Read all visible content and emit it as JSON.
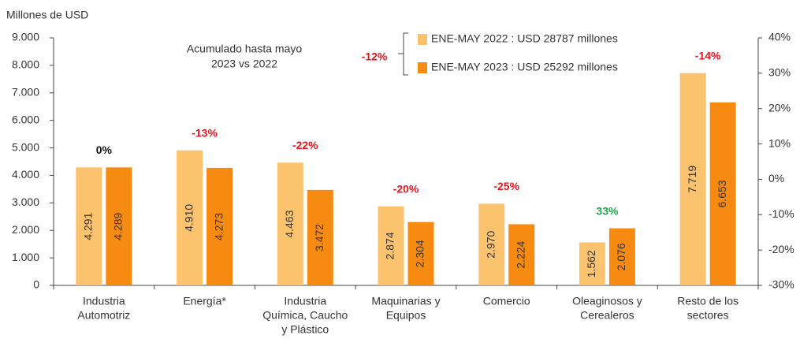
{
  "chart_data": {
    "type": "bar",
    "y_label": "Millones de USD",
    "annotation": [
      "Acumulado hasta mayo",
      "2023 vs 2022"
    ],
    "categories": [
      [
        "Industria",
        "Automotriz"
      ],
      [
        "Energía*"
      ],
      [
        "Industria",
        "Química, Caucho",
        "y Plástico"
      ],
      [
        "Maquinarias y",
        "Equipos"
      ],
      [
        "Comercio"
      ],
      [
        "Oleaginosos y",
        "Cerealeros"
      ],
      [
        "Resto de los",
        "sectores"
      ]
    ],
    "series": [
      {
        "name": "ENE-MAY 2022 : USD 28787 millones",
        "color": "#fcc36f",
        "values": [
          4291,
          4910,
          4463,
          2874,
          2970,
          1562,
          7719
        ],
        "value_labels": [
          "4.291",
          "4.910",
          "4.463",
          "2.874",
          "2.970",
          "1.562",
          "7.719"
        ]
      },
      {
        "name": "ENE-MAY 2023 : USD 25292 millones",
        "color": "#f78a10",
        "values": [
          4289,
          4273,
          3472,
          2304,
          2224,
          2076,
          6653
        ],
        "value_labels": [
          "4.289",
          "4.273",
          "3.472",
          "2.304",
          "2.224",
          "2.076",
          "6.653"
        ]
      }
    ],
    "changes": [
      {
        "value": 0,
        "label": "0%"
      },
      {
        "value": -13,
        "label": "-13%"
      },
      {
        "value": -22,
        "label": "-22%"
      },
      {
        "value": -20,
        "label": "-20%"
      },
      {
        "value": -25,
        "label": "-25%"
      },
      {
        "value": 33,
        "label": "33%"
      },
      {
        "value": -14,
        "label": "-14%"
      }
    ],
    "total_change": {
      "value": -12,
      "label": "-12%"
    },
    "negative_color": "#e8141e",
    "positive_color": "#1aa84a",
    "neutral_color": "#111111",
    "ylim": [
      0,
      9000
    ],
    "yticks": [
      0,
      {
        "value": 1000,
        "label": "1.000"
      },
      {
        "value": 2000,
        "label": "2.000"
      },
      {
        "value": 3000,
        "label": "3.000"
      },
      {
        "value": 4000,
        "label": "4.000"
      },
      {
        "value": 5000,
        "label": "5.000"
      },
      {
        "value": 6000,
        "label": "6.000"
      },
      {
        "value": 7000,
        "label": "7.000"
      },
      {
        "value": 8000,
        "label": "8.000"
      },
      {
        "value": 9000,
        "label": "9.000"
      }
    ],
    "y2lim": [
      -30,
      40
    ],
    "y2ticks": [
      {
        "value": -30,
        "label": "-30%"
      },
      {
        "value": -20,
        "label": "-20%"
      },
      {
        "value": -10,
        "label": "-10%"
      },
      {
        "value": 0,
        "label": "0%"
      },
      {
        "value": 10,
        "label": "10%"
      },
      {
        "value": 20,
        "label": "20%"
      },
      {
        "value": 30,
        "label": "30%"
      },
      {
        "value": 40,
        "label": "40%"
      }
    ]
  }
}
